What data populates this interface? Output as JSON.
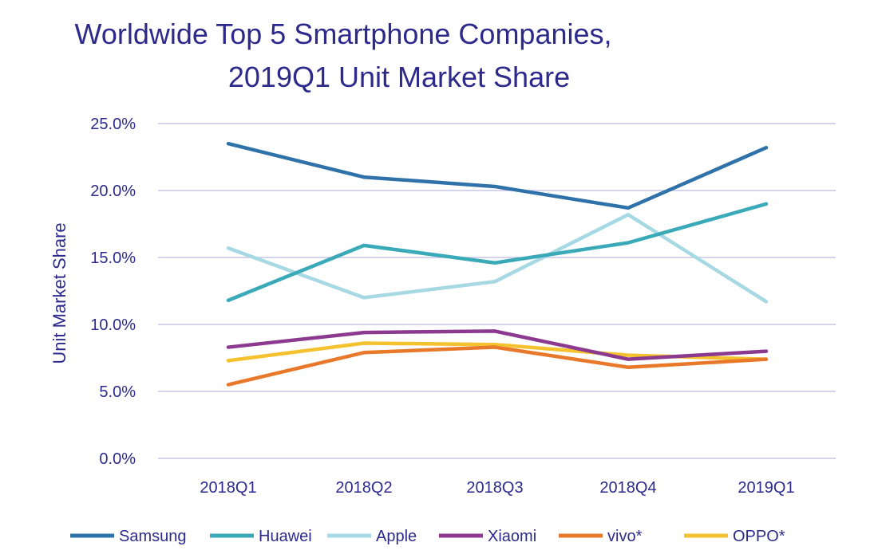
{
  "chart_data": {
    "type": "line",
    "title_line1": "Worldwide Top 5 Smartphone Companies,",
    "title_line2": "2019Q1 Unit Market Share",
    "xlabel": "",
    "ylabel": "Unit Market Share",
    "categories": [
      "2018Q1",
      "2018Q2",
      "2018Q3",
      "2018Q4",
      "2019Q1"
    ],
    "ylim": [
      0,
      25
    ],
    "yticks": [
      "0.0%",
      "5.0%",
      "10.0%",
      "15.0%",
      "20.0%",
      "25.0%"
    ],
    "grid": true,
    "legend_position": "bottom",
    "series": [
      {
        "name": "Samsung",
        "color": "#2f72aa",
        "values": [
          23.5,
          21.0,
          20.3,
          18.7,
          23.2
        ]
      },
      {
        "name": "Huawei",
        "color": "#3aa9b8",
        "values": [
          11.8,
          15.9,
          14.6,
          16.1,
          19.0
        ]
      },
      {
        "name": "Apple",
        "color": "#a6d9e3",
        "values": [
          15.7,
          12.0,
          13.2,
          18.2,
          11.7
        ]
      },
      {
        "name": "Xiaomi",
        "color": "#8b3a8f",
        "values": [
          8.3,
          9.4,
          9.5,
          7.4,
          8.0
        ]
      },
      {
        "name": "vivo*",
        "color": "#e9792a",
        "values": [
          5.5,
          7.9,
          8.3,
          6.8,
          7.4
        ]
      },
      {
        "name": "OPPO*",
        "color": "#f3c22e",
        "values": [
          7.3,
          8.6,
          8.5,
          7.7,
          7.4
        ]
      }
    ]
  }
}
